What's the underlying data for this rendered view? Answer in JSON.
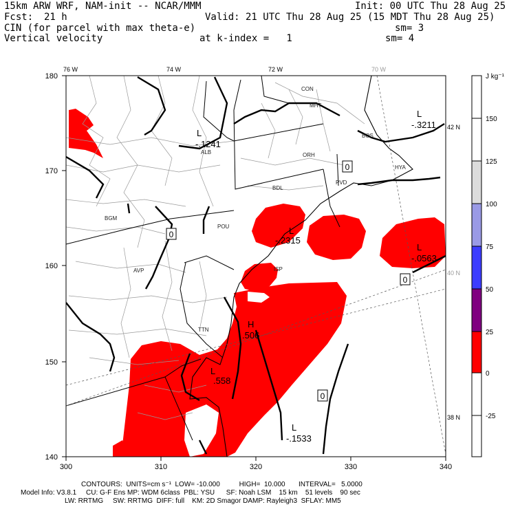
{
  "header": {
    "model": "15km ARW WRF, NAM-init -- NCAR/MMM",
    "init": "Init: 00 UTC Thu 28 Aug 25",
    "fcst_label": "Fcst:",
    "fcst_value": "21 h",
    "valid": "Valid: 21 UTC Thu 28 Aug 25 (15 MDT Thu 28 Aug 25)",
    "field1": "CIN (for parcel with max theta-e)",
    "field1_sm": "sm= 3",
    "field2": "Vertical velocity",
    "field2_level": "at k-index =   1",
    "field2_sm": "sm= 4"
  },
  "map": {
    "lon_labels": [
      "76 W",
      "74 W",
      "72 W",
      "70 W"
    ],
    "lat_labels": [
      "42 N",
      "40 N",
      "38 N"
    ],
    "y_ticks": [
      "180",
      "170",
      "160",
      "150",
      "140"
    ],
    "x_ticks": [
      "300",
      "310",
      "320",
      "330",
      "340"
    ],
    "places": [
      "CON",
      "MHT",
      "ORH",
      "BDL",
      "PVD",
      "BOS",
      "HYA",
      "ALB",
      "BGM",
      "POU",
      "AVP",
      "ISP",
      "TTN"
    ],
    "contour_labels": [
      "0",
      "0",
      "0",
      "0",
      "-.1241",
      "-.3211",
      "-.2315",
      "-.0563",
      ".506",
      "-.1533",
      ".558"
    ],
    "extrema": [
      "L",
      "L",
      "L",
      "L",
      "H",
      "L",
      "L"
    ]
  },
  "colorbar": {
    "unit": "J kg⁻¹",
    "labels": [
      "150",
      "125",
      "100",
      "75",
      "50",
      "25",
      "0",
      "-25"
    ],
    "colors": [
      "#ffffff",
      "#ffffff",
      "#dcdcdc",
      "#9a9ae6",
      "#3c3cff",
      "#800080",
      "#ff0000",
      "#ffffff",
      "#ffffff"
    ]
  },
  "footer": {
    "contours": "CONTOURS:  UNITS=cm s⁻¹  LOW= -10.000          HIGH=  10.000       INTERVAL=   5.0000",
    "model_info": "Model Info: V3.8.1     CU: G-F Ens MP: WDM 6class  PBL: YSU      SF: Noah LSM    15 km    51 levels    90 sec",
    "model_info2": "LW: RRTMG     SW: RRTMG  DIFF: full    KM: 2D Smagor DAMP: Rayleigh3  SFLAY: MM5"
  },
  "colors": {
    "cin_fill": "#ff0000",
    "land_lines": "#999999",
    "state_lines": "#000000"
  }
}
